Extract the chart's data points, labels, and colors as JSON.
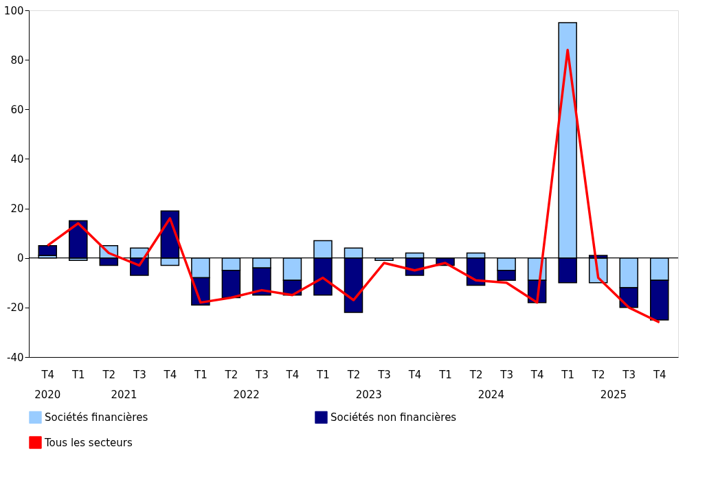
{
  "chart_data": {
    "type": "bar",
    "stacked": true,
    "categories": [
      "T4",
      "T1",
      "T2",
      "T3",
      "T4",
      "T1",
      "T2",
      "T3",
      "T4",
      "T1",
      "T2",
      "T3",
      "T4",
      "T1",
      "T2",
      "T3",
      "T4",
      "T1",
      "T2",
      "T3",
      "T4"
    ],
    "annotations": [
      "2020",
      "2021",
      "2022",
      "2023",
      "2024",
      "2025"
    ],
    "series": [
      {
        "name": "Sociétés financières",
        "color": "#99ccff",
        "values": [
          1,
          -1,
          5,
          4,
          -3,
          -8,
          -5,
          -4,
          -9,
          7,
          4,
          -1,
          2,
          0,
          2,
          -5,
          -9,
          95,
          -10,
          -12,
          -9
        ]
      },
      {
        "name": "Sociétés non financières",
        "color": "#000080",
        "values": [
          4,
          15,
          -3,
          -7,
          19,
          -11,
          -11,
          -11,
          -6,
          -15,
          -22,
          0,
          -7,
          -3,
          -11,
          -4,
          -9,
          -10,
          1,
          -8,
          -16
        ]
      },
      {
        "name": "Tous les secteurs",
        "type": "line",
        "color": "#ff0000",
        "values": [
          5,
          14,
          2,
          -3,
          16,
          -18,
          -16,
          -13,
          -15,
          -8,
          -17,
          -2,
          -5,
          -2,
          -9,
          -10,
          -18,
          84,
          -8,
          -20,
          -26
        ]
      }
    ],
    "ylim": [
      -40,
      100
    ],
    "yticks": [
      -40,
      -20,
      0,
      20,
      40,
      60,
      80,
      100
    ],
    "ref_lines": [
      {
        "axis": "y",
        "value": 0,
        "color": "#000000"
      }
    ],
    "grid": false,
    "legend": "bottom",
    "marker": "none",
    "line_style": "solid"
  }
}
